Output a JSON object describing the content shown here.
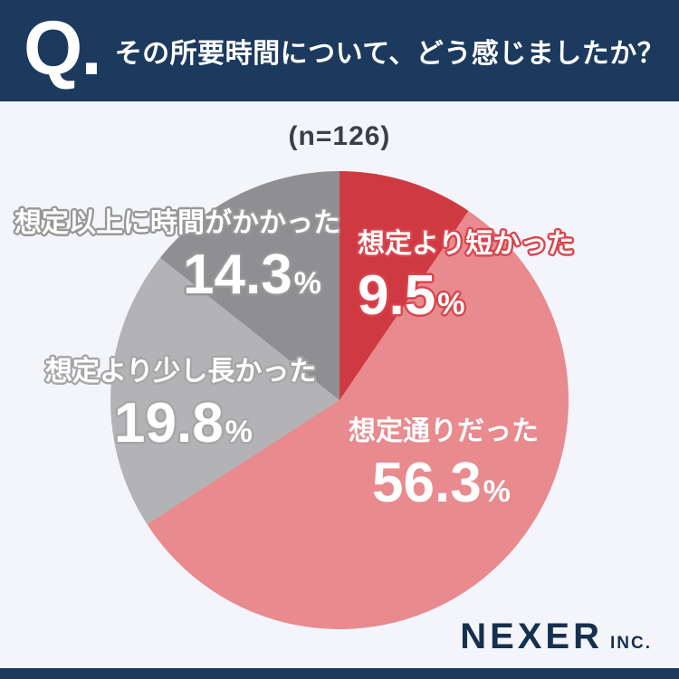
{
  "header": {
    "q_mark": "Q.",
    "title": "その所要時間について、どう感じましたか？"
  },
  "sample_size": "(n=126)",
  "chart_data": {
    "type": "pie",
    "title": "その所要時間について、どう感じましたか？",
    "sample_label": "(n=126)",
    "start_angle_deg": 0,
    "direction": "clockwise",
    "percent_suffix": "%",
    "slices": [
      {
        "label": "想定より短かった",
        "value": 9.5,
        "value_text": "9.5",
        "color": "#cf3a42",
        "label_stroke": "#d8454d"
      },
      {
        "label": "想定通りだった",
        "value": 56.3,
        "value_text": "56.3",
        "color": "#e88a8e",
        "label_stroke": null
      },
      {
        "label": "想定より少し長かった",
        "value": 19.8,
        "value_text": "19.8",
        "color": "#b3b3b5",
        "label_stroke": "#a6a6a8"
      },
      {
        "label": "想定以上に時間がかかった",
        "value": 14.3,
        "value_text": "14.3",
        "color": "#8f8f91",
        "label_stroke": "#98989a"
      }
    ]
  },
  "footer": {
    "logo_main": "NEXER",
    "logo_suffix": "INC."
  },
  "colors": {
    "background": "#f3f5fb",
    "navy": "#1c3a5e",
    "logo_navy": "#16304e",
    "sample_text": "#3b3f49",
    "label_text": "#ffffff"
  }
}
